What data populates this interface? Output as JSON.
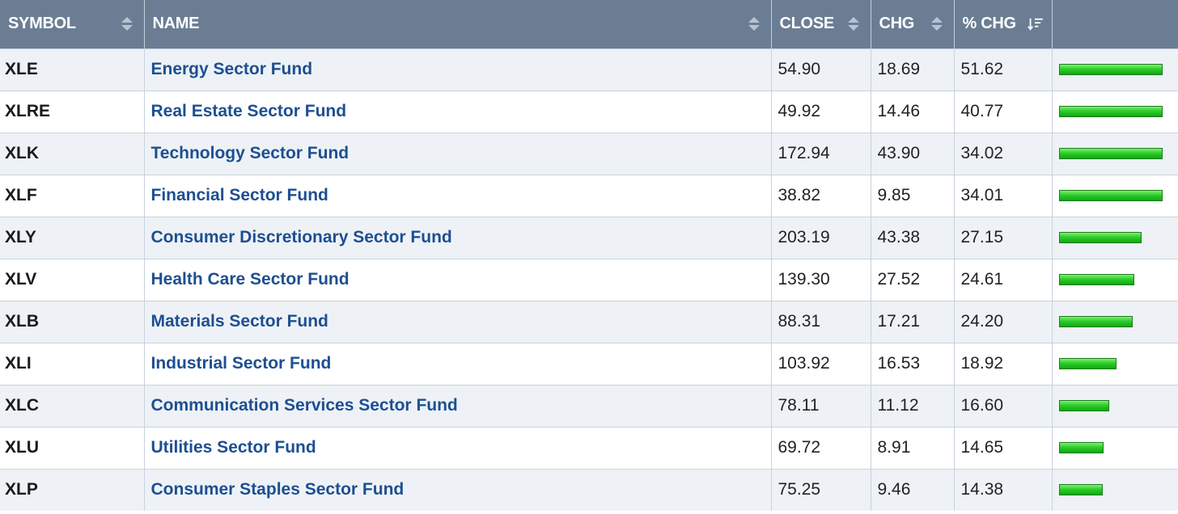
{
  "table": {
    "headers": {
      "symbol": "SYMBOL",
      "name": "NAME",
      "close": "CLOSE",
      "chg": "CHG",
      "pct_chg": "% CHG"
    },
    "colors": {
      "header_bg": "#6b7d93",
      "name_link": "#1d4f91",
      "bar_green": "#2ecc2e",
      "row_alt": "#eef2f6"
    },
    "icons": {
      "sort": "sort-arrows-icon",
      "sorted_desc": "sort-descending-icon"
    },
    "rows": [
      {
        "symbol": "XLE",
        "name": "Energy Sector Fund",
        "close": "54.90",
        "chg": "18.69",
        "pct_chg": "51.62"
      },
      {
        "symbol": "XLRE",
        "name": "Real Estate Sector Fund",
        "close": "49.92",
        "chg": "14.46",
        "pct_chg": "40.77"
      },
      {
        "symbol": "XLK",
        "name": "Technology Sector Fund",
        "close": "172.94",
        "chg": "43.90",
        "pct_chg": "34.02"
      },
      {
        "symbol": "XLF",
        "name": "Financial Sector Fund",
        "close": "38.82",
        "chg": "9.85",
        "pct_chg": "34.01"
      },
      {
        "symbol": "XLY",
        "name": "Consumer Discretionary Sector Fund",
        "close": "203.19",
        "chg": "43.38",
        "pct_chg": "27.15"
      },
      {
        "symbol": "XLV",
        "name": "Health Care Sector Fund",
        "close": "139.30",
        "chg": "27.52",
        "pct_chg": "24.61"
      },
      {
        "symbol": "XLB",
        "name": "Materials Sector Fund",
        "close": "88.31",
        "chg": "17.21",
        "pct_chg": "24.20"
      },
      {
        "symbol": "XLI",
        "name": "Industrial Sector Fund",
        "close": "103.92",
        "chg": "16.53",
        "pct_chg": "18.92"
      },
      {
        "symbol": "XLC",
        "name": "Communication Services Sector Fund",
        "close": "78.11",
        "chg": "11.12",
        "pct_chg": "16.60"
      },
      {
        "symbol": "XLU",
        "name": "Utilities Sector Fund",
        "close": "69.72",
        "chg": "8.91",
        "pct_chg": "14.65"
      },
      {
        "symbol": "XLP",
        "name": "Consumer Staples Sector Fund",
        "close": "75.25",
        "chg": "9.46",
        "pct_chg": "14.38"
      }
    ]
  }
}
